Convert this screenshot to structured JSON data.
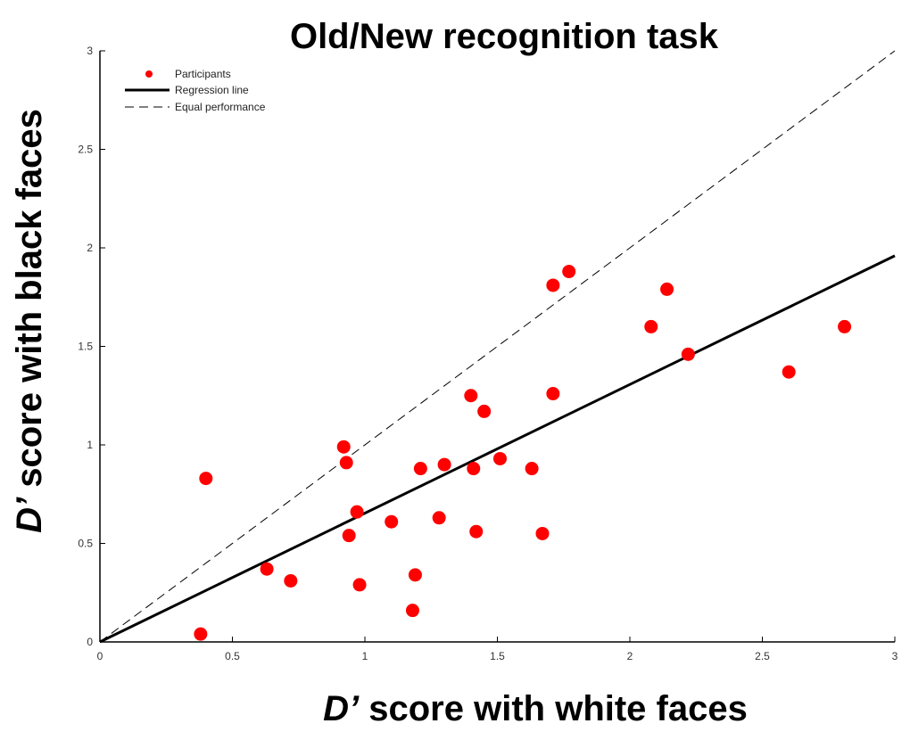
{
  "chart_data": {
    "type": "scatter",
    "title": "Old/New recognition task",
    "xlabel": {
      "prefix": "D’",
      "rest": " score with white faces"
    },
    "ylabel": {
      "prefix": "D’",
      "rest": " score with black faces"
    },
    "xlim": [
      0,
      3
    ],
    "ylim": [
      0,
      3
    ],
    "xticks": [
      "0",
      "0.5",
      "1",
      "1.5",
      "2",
      "2.5",
      "3"
    ],
    "yticks": [
      "0",
      "0.5",
      "1",
      "1.5",
      "2",
      "2.5",
      "3"
    ],
    "grid": false,
    "legend_position": "top-left",
    "legend": {
      "participants": "Participants",
      "regression": "Regression line",
      "equal": "Equal performance"
    },
    "series": [
      {
        "name": "Participants",
        "type": "scatter",
        "color": "#ff0000",
        "points": [
          [
            0.38,
            0.04
          ],
          [
            0.4,
            0.83
          ],
          [
            0.63,
            0.37
          ],
          [
            0.72,
            0.31
          ],
          [
            0.92,
            0.99
          ],
          [
            0.93,
            0.91
          ],
          [
            0.94,
            0.54
          ],
          [
            0.97,
            0.66
          ],
          [
            0.98,
            0.29
          ],
          [
            1.1,
            0.61
          ],
          [
            1.18,
            0.16
          ],
          [
            1.19,
            0.34
          ],
          [
            1.21,
            0.88
          ],
          [
            1.28,
            0.63
          ],
          [
            1.3,
            0.9
          ],
          [
            1.4,
            1.25
          ],
          [
            1.41,
            0.88
          ],
          [
            1.42,
            0.56
          ],
          [
            1.45,
            1.17
          ],
          [
            1.51,
            0.93
          ],
          [
            1.63,
            0.88
          ],
          [
            1.67,
            0.55
          ],
          [
            1.71,
            1.81
          ],
          [
            1.71,
            1.26
          ],
          [
            1.77,
            1.88
          ],
          [
            2.08,
            1.6
          ],
          [
            2.14,
            1.79
          ],
          [
            2.22,
            1.46
          ],
          [
            2.6,
            1.37
          ],
          [
            2.81,
            1.6
          ]
        ]
      },
      {
        "name": "Regression line",
        "type": "line",
        "color": "#000000",
        "x": [
          0,
          3
        ],
        "y": [
          0,
          1.96
        ]
      },
      {
        "name": "Equal performance",
        "type": "line",
        "style": "dashed",
        "color": "#000000",
        "x": [
          0,
          3
        ],
        "y": [
          0,
          3
        ]
      }
    ]
  }
}
